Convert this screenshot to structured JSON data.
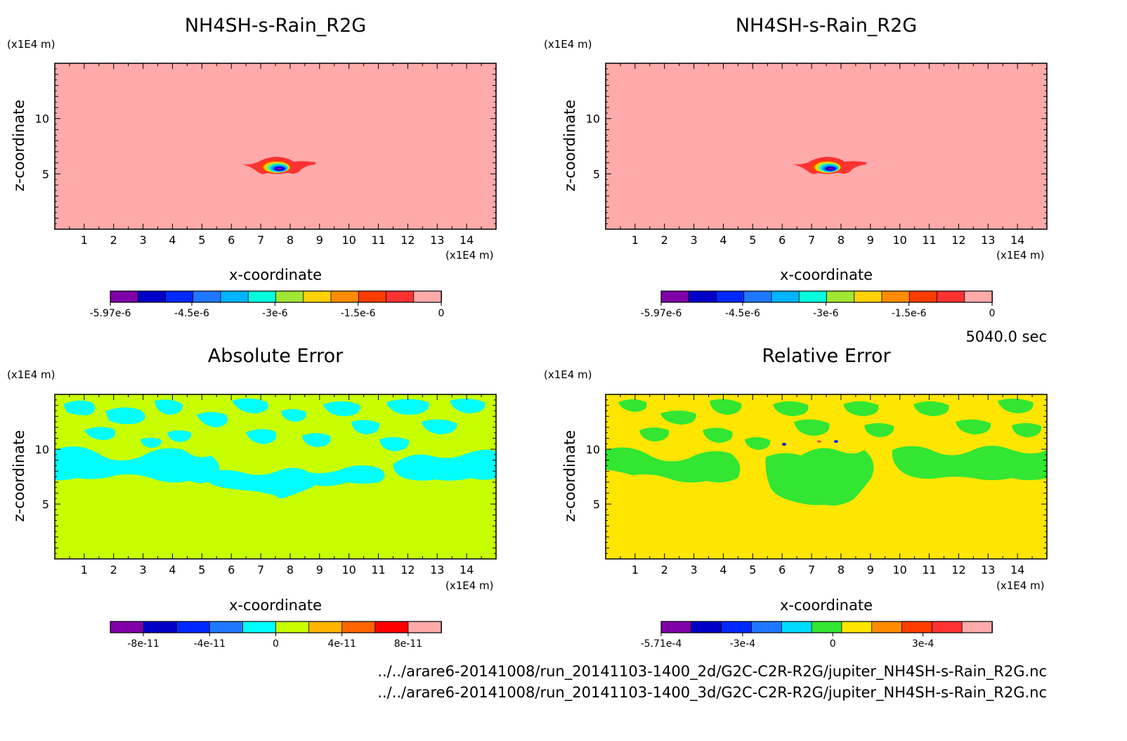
{
  "colors": {
    "background": "#ffffff",
    "axis": "#000000",
    "palette_signed": [
      "#7f00a8",
      "#0000c8",
      "#0028ff",
      "#1e78ff",
      "#00b4ff",
      "#00ffdc",
      "#a0e632",
      "#ffd200",
      "#ff8c00",
      "#ff3c00",
      "#ff3232",
      "#ffaaaa"
    ],
    "palette_abs": [
      "#7f00a8",
      "#0000c8",
      "#0028ff",
      "#1e78ff",
      "#00ffff",
      "#c8ff00",
      "#ffb400",
      "#ff6400",
      "#ff0000",
      "#ffaaaa"
    ],
    "palette_rel": [
      "#7f00a8",
      "#0000c8",
      "#0028ff",
      "#1e78ff",
      "#00dcff",
      "#32e632",
      "#ffe600",
      "#ff8c00",
      "#ff3c00",
      "#ff3232",
      "#ffaaaa"
    ]
  },
  "time_label": "5040.0 sec",
  "file_paths": [
    "../../arare6-20141008/run_20141103-1400_2d/G2C-C2R-R2G/jupiter_NH4SH-s-Rain_R2G.nc",
    "../../arare6-20141008/run_20141103-1400_3d/G2C-C2R-R2G/jupiter_NH4SH-s-Rain_R2G.nc"
  ],
  "chart_data": [
    {
      "type": "heatmap",
      "title": "NH4SH-s-Rain_R2G",
      "xlabel": "x-coordinate",
      "ylabel": "z-coordinate",
      "x_unit": "(x1E4 m)",
      "y_unit": "(x1E4 m)",
      "xlim": [
        0,
        15
      ],
      "ylim": [
        0,
        15
      ],
      "xticks": [
        "1",
        "2",
        "3",
        "4",
        "5",
        "6",
        "7",
        "8",
        "9",
        "10",
        "11",
        "12",
        "13",
        "14"
      ],
      "yticks": [
        "5",
        "10"
      ],
      "background_level": "0",
      "feature": "localized negative anomaly centered near x=7.6, z=5.5",
      "colorbar": {
        "levels": 12,
        "min": -5.97e-06,
        "max": 0,
        "tick_labels": [
          "-5.97e-6",
          "-4.5e-6",
          "-3e-6",
          "-1.5e-6",
          "0"
        ]
      }
    },
    {
      "type": "heatmap",
      "title": "NH4SH-s-Rain_R2G",
      "xlabel": "x-coordinate",
      "ylabel": "z-coordinate",
      "x_unit": "(x1E4 m)",
      "y_unit": "(x1E4 m)",
      "xlim": [
        0,
        15
      ],
      "ylim": [
        0,
        15
      ],
      "xticks": [
        "1",
        "2",
        "3",
        "4",
        "5",
        "6",
        "7",
        "8",
        "9",
        "10",
        "11",
        "12",
        "13",
        "14"
      ],
      "yticks": [
        "5",
        "10"
      ],
      "background_level": "0",
      "feature": "localized negative anomaly centered near x=7.6, z=5.5",
      "colorbar": {
        "levels": 12,
        "min": -5.97e-06,
        "max": 0,
        "tick_labels": [
          "-5.97e-6",
          "-4.5e-6",
          "-3e-6",
          "-1.5e-6",
          "0"
        ]
      }
    },
    {
      "type": "heatmap",
      "title": "Absolute Error",
      "xlabel": "x-coordinate",
      "ylabel": "z-coordinate",
      "x_unit": "(x1E4 m)",
      "y_unit": "(x1E4 m)",
      "xlim": [
        0,
        15
      ],
      "ylim": [
        0,
        15
      ],
      "xticks": [
        "1",
        "2",
        "3",
        "4",
        "5",
        "6",
        "7",
        "8",
        "9",
        "10",
        "11",
        "12",
        "13",
        "14"
      ],
      "yticks": [
        "5",
        "10"
      ],
      "background_level": "0 to 2e-11",
      "feature": "patchy slightly negative values for z between 6 and 15",
      "colorbar": {
        "levels": 10,
        "min": -1e-10,
        "max": 1e-10,
        "tick_labels": [
          "-8e-11",
          "-4e-11",
          "0",
          "4e-11",
          "8e-11"
        ]
      }
    },
    {
      "type": "heatmap",
      "title": "Relative Error",
      "xlabel": "x-coordinate",
      "ylabel": "z-coordinate",
      "x_unit": "(x1E4 m)",
      "y_unit": "(x1E4 m)",
      "xlim": [
        0,
        15
      ],
      "ylim": [
        0,
        15
      ],
      "xticks": [
        "1",
        "2",
        "3",
        "4",
        "5",
        "6",
        "7",
        "8",
        "9",
        "10",
        "11",
        "12",
        "13",
        "14"
      ],
      "yticks": [
        "5",
        "10"
      ],
      "background_level": "0 to 1e-4",
      "feature": "patchy slightly negative values for z between 6 and 15",
      "colorbar": {
        "levels": 11,
        "min": -0.000571,
        "max": 0.00053,
        "tick_labels": [
          "-5.71e-4",
          "-3e-4",
          "0",
          "3e-4"
        ]
      }
    }
  ]
}
